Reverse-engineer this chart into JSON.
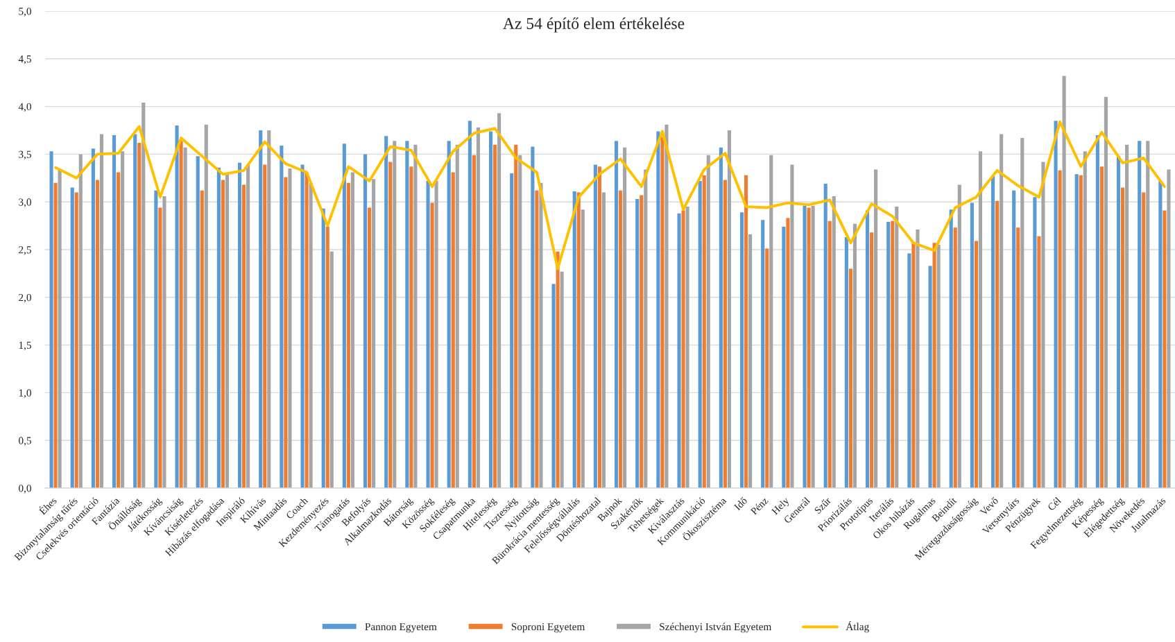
{
  "chart_data": {
    "type": "bar",
    "title": "Az 54 építő elem értékelése",
    "categories": [
      "Éhes",
      "Bizonytalanság tűrés",
      "Cselekvés orientáció",
      "Fantázia",
      "Önállóság",
      "Játékosság",
      "Kíváncsiság",
      "Kísérletezés",
      "Hibázás elfogadása",
      "Inspiráló",
      "Kihívás",
      "Mintaadás",
      "Coach",
      "Kezdeményezés",
      "Támogatás",
      "Befolyás",
      "Alkalmazkodás",
      "Bátorság",
      "Közösség",
      "Sokféleség",
      "Csapatmunka",
      "Hitelesség",
      "Tisztesség",
      "Nyitottság",
      "Bürokrácia mentesség",
      "Felelősségvállalás",
      "Döntéshozatal",
      "Bajnok",
      "Szakértők",
      "Tehetségek",
      "Kiválasztás",
      "Kommunikáció",
      "Ökoszisztéma",
      "Idő",
      "Pénz",
      "Hely",
      "Generál",
      "Szűr",
      "Priorizálás",
      "Prototípus",
      "Iterálás",
      "Okos hibázás",
      "Rugalmas",
      "Beindít",
      "Méretgazdaságosság",
      "Vevő",
      "Versenytárs",
      "Pénzügyek",
      "Cél",
      "Fegyelmezettség",
      "Képesség",
      "Elégedettség",
      "Növekedés",
      "Jutalmazás"
    ],
    "series": [
      {
        "name": "Pannon Egyetem",
        "color": "#5b9bd5",
        "values": [
          3.53,
          3.15,
          3.56,
          3.7,
          3.71,
          3.12,
          3.8,
          3.48,
          3.36,
          3.41,
          3.75,
          3.59,
          3.39,
          2.93,
          3.61,
          3.5,
          3.69,
          3.64,
          3.22,
          3.64,
          3.85,
          3.74,
          3.3,
          3.58,
          2.14,
          3.11,
          3.39,
          3.64,
          3.03,
          3.74,
          2.88,
          3.22,
          3.57,
          2.89,
          2.81,
          2.74,
          2.96,
          3.19,
          2.63,
          2.91,
          2.79,
          2.46,
          2.33,
          2.92,
          2.99,
          3.27,
          3.12,
          3.05,
          3.85,
          3.29,
          3.7,
          3.48,
          3.64,
          3.22
        ]
      },
      {
        "name": "Soproni Egyetem",
        "color": "#ed7d31",
        "values": [
          3.2,
          3.1,
          3.23,
          3.31,
          3.62,
          2.94,
          3.64,
          3.12,
          3.23,
          3.18,
          3.39,
          3.26,
          3.31,
          2.74,
          3.2,
          2.94,
          3.42,
          3.37,
          2.99,
          3.31,
          3.49,
          3.6,
          3.6,
          3.12,
          2.48,
          3.1,
          3.37,
          3.12,
          3.07,
          3.68,
          2.91,
          3.28,
          3.23,
          3.28,
          2.51,
          2.83,
          2.94,
          2.8,
          2.3,
          2.68,
          2.8,
          2.57,
          2.57,
          2.73,
          2.59,
          3.01,
          2.73,
          2.64,
          3.33,
          3.28,
          3.37,
          3.15,
          3.1,
          2.91
        ]
      },
      {
        "name": "Széchenyi István Egyetem",
        "color": "#a5a5a5",
        "values": [
          3.33,
          3.5,
          3.71,
          3.53,
          4.04,
          3.06,
          3.57,
          3.81,
          3.29,
          3.39,
          3.75,
          3.35,
          3.2,
          2.48,
          3.31,
          3.24,
          3.64,
          3.6,
          3.22,
          3.6,
          3.78,
          3.93,
          3.49,
          3.2,
          2.27,
          2.92,
          3.1,
          3.57,
          3.34,
          3.81,
          2.95,
          3.49,
          3.75,
          2.66,
          3.49,
          3.39,
          2.96,
          3.06,
          2.77,
          3.34,
          2.95,
          2.71,
          2.55,
          3.18,
          3.53,
          3.71,
          3.67,
          3.42,
          4.32,
          3.53,
          4.1,
          3.6,
          3.64,
          3.34
        ]
      },
      {
        "name": "Átlag",
        "type": "line",
        "color": "#ffc000",
        "values": [
          3.36,
          3.25,
          3.5,
          3.51,
          3.79,
          3.05,
          3.67,
          3.48,
          3.29,
          3.33,
          3.63,
          3.4,
          3.31,
          2.75,
          3.37,
          3.22,
          3.58,
          3.54,
          3.16,
          3.53,
          3.72,
          3.77,
          3.46,
          3.31,
          2.3,
          3.05,
          3.29,
          3.45,
          3.16,
          3.74,
          2.92,
          3.34,
          3.51,
          2.95,
          2.94,
          2.99,
          2.97,
          3.02,
          2.57,
          2.98,
          2.85,
          2.57,
          2.49,
          2.94,
          3.05,
          3.33,
          3.17,
          3.05,
          3.84,
          3.37,
          3.73,
          3.41,
          3.46,
          3.16
        ]
      }
    ],
    "ylim": [
      0,
      5
    ],
    "yticks": [
      {
        "value": 0,
        "label": "0,0"
      },
      {
        "value": 0.5,
        "label": "0,5"
      },
      {
        "value": 1,
        "label": "1,0"
      },
      {
        "value": 1.5,
        "label": "1,5"
      },
      {
        "value": 2,
        "label": "2,0"
      },
      {
        "value": 2.5,
        "label": "2,5"
      },
      {
        "value": 3,
        "label": "3,0"
      },
      {
        "value": 3.5,
        "label": "3,5"
      },
      {
        "value": 4,
        "label": "4,0"
      },
      {
        "value": 4.5,
        "label": "4,5"
      },
      {
        "value": 5,
        "label": "5,0"
      }
    ],
    "grid": "y",
    "legend": "bottom"
  }
}
